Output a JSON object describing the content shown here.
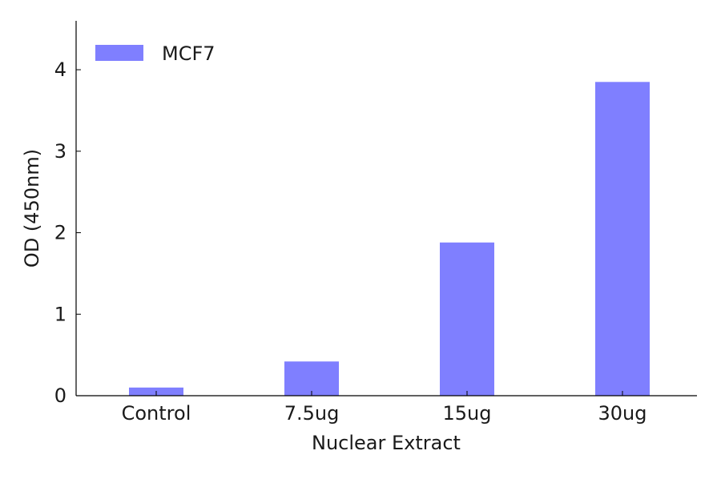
{
  "chart_data": {
    "type": "bar",
    "title": "",
    "xlabel": "Nuclear Extract",
    "ylabel": "OD (450nm)",
    "categories": [
      "Control",
      "7.5ug",
      "15ug",
      "30ug"
    ],
    "series": [
      {
        "name": "MCF7",
        "values": [
          0.1,
          0.42,
          1.88,
          3.85
        ],
        "color": "#7f7fff"
      }
    ],
    "ylim": [
      0,
      4.6
    ],
    "yticks": [
      0,
      1,
      2,
      3,
      4
    ],
    "grid": false,
    "legend_position": "top-left"
  }
}
